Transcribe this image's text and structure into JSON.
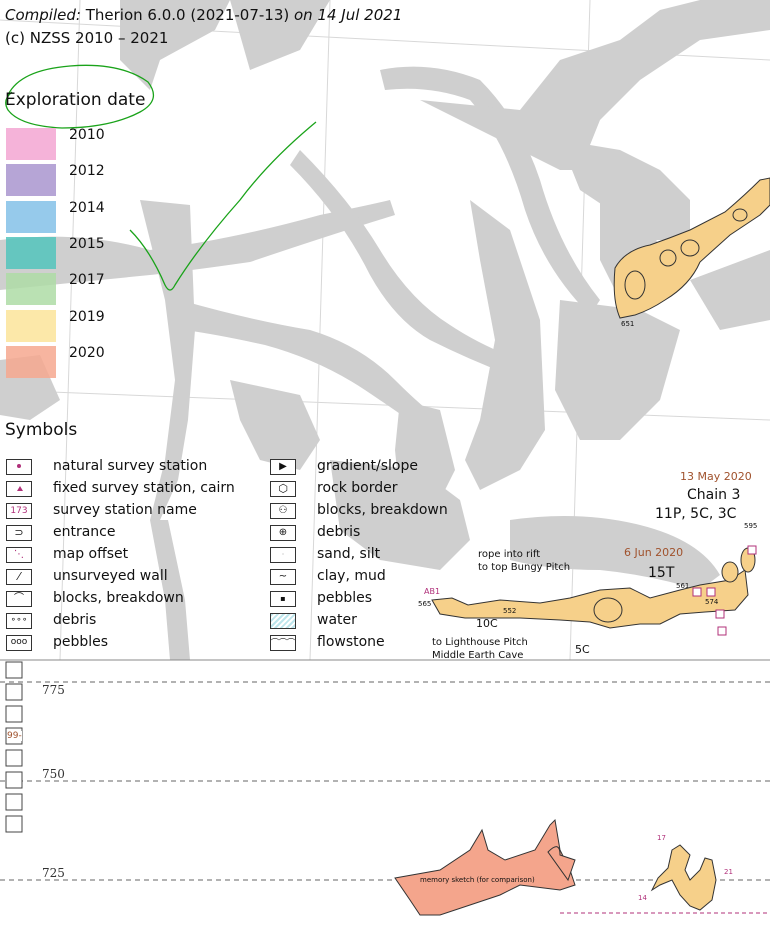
{
  "header": {
    "compiled_label": "Compiled:",
    "software": "Therion 6.0.0 (2021-07-13)",
    "on_date": "on 14 Jul 2021",
    "copyright": "(c) NZSS 2010 – 2021"
  },
  "exploration": {
    "title": "Exploration date",
    "entries": [
      {
        "year": "2010",
        "color": "#f3a6d2"
      },
      {
        "year": "2012",
        "color": "#a995cf"
      },
      {
        "year": "2014",
        "color": "#84c1e8"
      },
      {
        "year": "2015",
        "color": "#52c4bc"
      },
      {
        "year": "2017",
        "color": "#aedca6"
      },
      {
        "year": "2019",
        "color": "#fbe49a"
      },
      {
        "year": "2020",
        "color": "#f6a88f"
      }
    ]
  },
  "symbols": {
    "title": "Symbols",
    "left": [
      "natural survey station",
      "fixed survey station, cairn",
      "survey station name",
      "entrance",
      "map offset",
      "unsurveyed wall",
      "blocks, breakdown",
      "debris",
      "pebbles"
    ],
    "station_name_sample": "173",
    "right": [
      "gradient/slope",
      "rock border",
      "blocks, breakdown",
      "debris",
      "sand, silt",
      "clay, mud",
      "pebbles",
      "water",
      "flowstone"
    ]
  },
  "map_labels": {
    "date1": "13 May 2020",
    "chain": "Chain 3",
    "codes": "11P, 5C, 3C",
    "date2": "6 Jun 2020",
    "code15t": "15T",
    "rope_line1": "rope into rift",
    "rope_line2": "to top Bungy Pitch",
    "code10c": "10C",
    "code5c": "5C",
    "lighthouse_line1": "to Lighthouse Pitch",
    "lighthouse_line2": "Middle Earth Cave",
    "ab1": "AB1",
    "st565": "565",
    "st552": "552",
    "st561": "561",
    "st574": "574",
    "st595": "595",
    "st651": "651",
    "memory_sketch": "memory sketch (for comparison)",
    "n17": "17",
    "n14": "14",
    "n21": "21",
    "n99": "99-"
  },
  "profile": {
    "elevations": [
      "775",
      "750",
      "725"
    ]
  },
  "colors": {
    "gray_fill": "#cfcfcf",
    "cave_2019": "#f6d08a",
    "cave_2020": "#f4a58c",
    "annotation_green": "#1aa31a",
    "label_brown": "#a0522d",
    "label_magenta": "#b0307a"
  }
}
